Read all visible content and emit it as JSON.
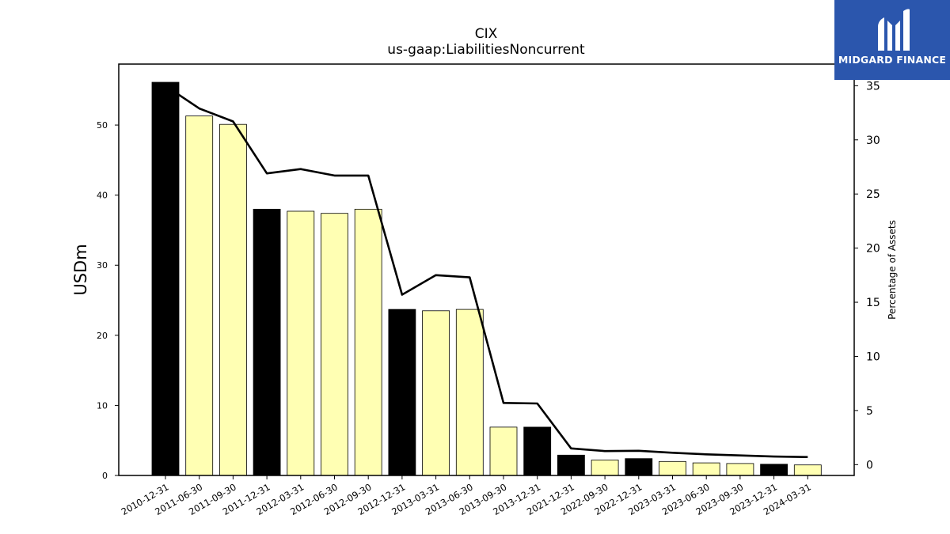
{
  "chart_data": {
    "type": "bar",
    "title": "CIX",
    "subtitle": "us-gaap:LiabilitiesNoncurrent",
    "ylabel": "USDm",
    "y2label": "Percentage of Assets",
    "categories": [
      "2010-12-31",
      "2011-06-30",
      "2011-09-30",
      "2011-12-31",
      "2012-03-31",
      "2012-06-30",
      "2012-09-30",
      "2012-12-31",
      "2013-03-31",
      "2013-06-30",
      "2013-09-30",
      "2013-12-31",
      "2021-12-31",
      "2022-09-30",
      "2022-12-31",
      "2023-03-31",
      "2023-06-30",
      "2023-09-30",
      "2023-12-31",
      "2024-03-31"
    ],
    "bar_values": [
      56.1,
      51.3,
      50.1,
      38.0,
      37.7,
      37.4,
      38.0,
      23.7,
      23.5,
      23.7,
      6.9,
      6.9,
      2.9,
      2.2,
      2.4,
      2.0,
      1.8,
      1.7,
      1.6,
      1.5
    ],
    "bar_colors": [
      "#000000",
      "#ffffb3",
      "#ffffb3",
      "#000000",
      "#ffffb3",
      "#ffffb3",
      "#ffffb3",
      "#000000",
      "#ffffb3",
      "#ffffb3",
      "#ffffb3",
      "#000000",
      "#000000",
      "#ffffb3",
      "#000000",
      "#ffffb3",
      "#ffffb3",
      "#ffffb3",
      "#000000",
      "#ffffb3"
    ],
    "line_values": [
      35.0,
      32.9,
      31.7,
      26.9,
      27.3,
      26.7,
      26.7,
      15.7,
      17.5,
      17.3,
      5.7,
      5.65,
      1.5,
      1.25,
      1.28,
      1.1,
      0.95,
      0.85,
      0.75,
      0.7
    ],
    "ylim": [
      0,
      58.7
    ],
    "y2lim": [
      -1.0,
      37.0
    ],
    "yticks": [
      0,
      10,
      20,
      30,
      40,
      50
    ],
    "y2ticks": [
      0,
      5,
      10,
      15,
      20,
      25,
      30,
      35
    ],
    "grid": false,
    "legend": "none"
  },
  "logo": {
    "text": "MIDGARD FINANCE",
    "background": "#2b56ad"
  }
}
